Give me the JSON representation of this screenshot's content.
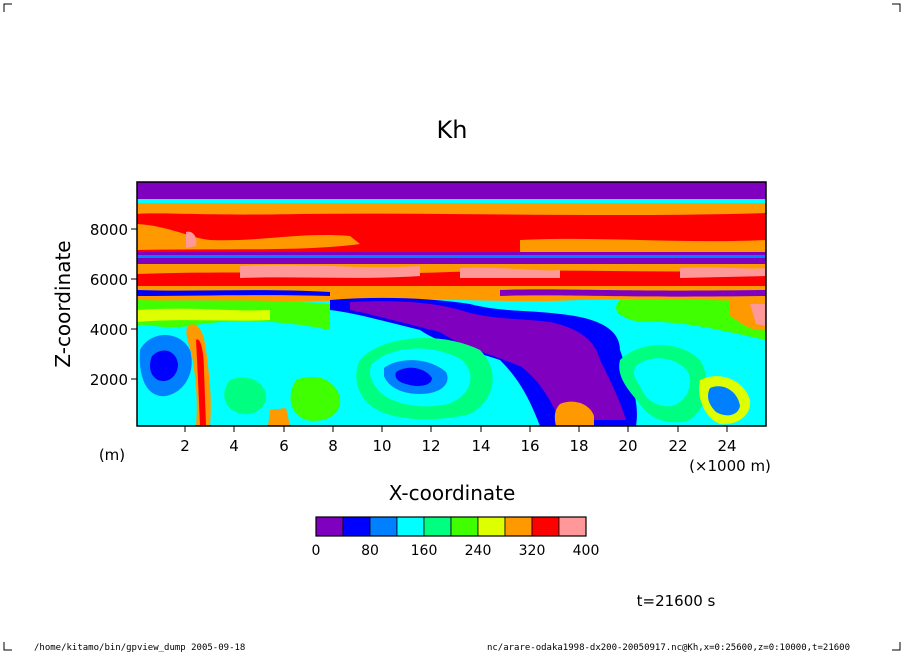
{
  "chart_data": {
    "type": "heatmap",
    "title": "Kh",
    "xlabel": "X-coordinate",
    "ylabel": "Z-coordinate",
    "x_unit": "(×1000 m)",
    "y_unit": "(m)",
    "xlim": [
      0,
      25600
    ],
    "ylim": [
      0,
      10000
    ],
    "x_ticks": [
      "2",
      "4",
      "6",
      "8",
      "10",
      "12",
      "14",
      "16",
      "18",
      "20",
      "22",
      "24"
    ],
    "y_ticks": [
      "2000",
      "4000",
      "6000",
      "8000"
    ],
    "colorbar": {
      "levels": [
        0,
        40,
        80,
        120,
        160,
        200,
        240,
        280,
        320,
        360,
        400
      ],
      "tick_labels": [
        "0",
        "80",
        "160",
        "240",
        "320",
        "400"
      ],
      "colors": [
        "#7f00bf",
        "#0000ff",
        "#0080ff",
        "#00ffff",
        "#00ff80",
        "#40ff00",
        "#ddff00",
        "#ff9900",
        "#ff0000",
        "#ff9999"
      ]
    },
    "time_label": "t=21600 s",
    "field_note": "Kh contour field: high values (320-400) in bands near z=8000-9000 m and 5500-6500 m; low values (0-80) near top and in central region x=14-20 km, z=1000-4500 m; mixed 80-320 below 5000 m."
  },
  "footer": {
    "left": "/home/kitamo/bin/gpview_dump  2005-09-18",
    "right": "nc/arare-odaka1998-dx200-20050917.nc@Kh,x=0:25600,z=0:10000,t=21600"
  }
}
